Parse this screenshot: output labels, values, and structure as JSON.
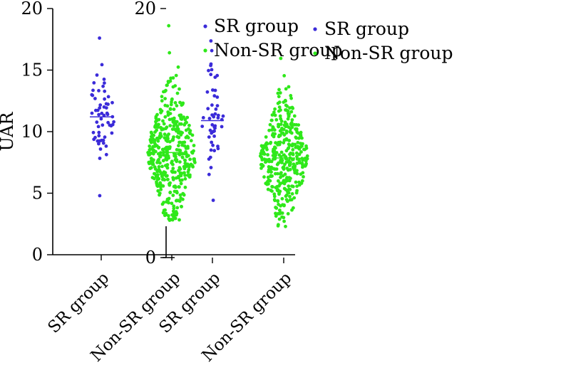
{
  "chart_data": [
    {
      "type": "scatter",
      "subtype": "dot-plot",
      "ylabel": "UAR",
      "ylim": [
        0,
        20
      ],
      "yticks": [
        "0",
        "5",
        "10",
        "15",
        "20"
      ],
      "categories": [
        "SR group",
        "Non-SR group"
      ],
      "series": [
        {
          "name": "SR group",
          "color": "#3b2bd9",
          "count": 60,
          "min": 4.8,
          "max": 17.6,
          "mean": 11.2
        },
        {
          "name": "Non-SR group",
          "color": "#2fe81a",
          "count": 420,
          "min": 2.8,
          "max": 18.6,
          "mean": 8.3
        }
      ],
      "legend": {
        "position": "top-right",
        "entries": [
          "SR group",
          "Non-SR group"
        ]
      }
    },
    {
      "type": "scatter",
      "subtype": "dot-plot",
      "ylim": [
        0,
        20
      ],
      "yticks": [
        "0",
        "20"
      ],
      "categories": [
        "SR group",
        "Non-SR group"
      ],
      "series": [
        {
          "name": "SR group",
          "color": "#3b2bd9",
          "count": 50,
          "min": 4.6,
          "max": 17.4,
          "mean": 11.0
        },
        {
          "name": "Non-SR group",
          "color": "#2fe81a",
          "count": 380,
          "min": 2.5,
          "max": 16.0,
          "mean": 8.0
        }
      ],
      "legend": {
        "position": "top-right",
        "entries": [
          "SR group",
          "Non-SR group"
        ]
      }
    }
  ]
}
